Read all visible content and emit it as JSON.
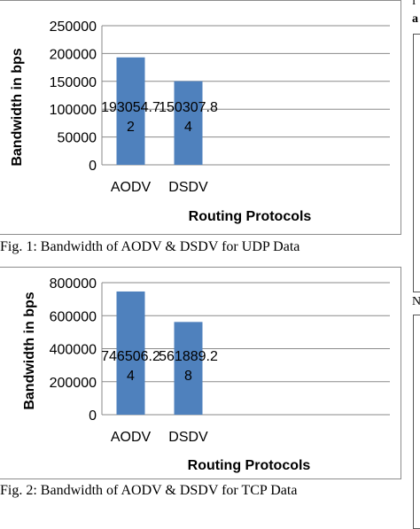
{
  "chart_data": [
    {
      "type": "bar",
      "categories": [
        "AODV",
        "DSDV"
      ],
      "values": [
        193054.72,
        150307.84
      ],
      "data_labels": [
        [
          "193054.7",
          "2"
        ],
        [
          "150307.8",
          "4"
        ]
      ],
      "xlabel": "Routing Protocols",
      "ylabel": "Bandwidth  in bps",
      "ylim": [
        0,
        250000
      ],
      "yticks": [
        0,
        50000,
        100000,
        150000,
        200000,
        250000
      ],
      "ytick_labels": [
        "0",
        "50000",
        "100000",
        "150000",
        "200000",
        "250000"
      ],
      "grid": true,
      "bar_color": "#4f81bd"
    },
    {
      "type": "bar",
      "categories": [
        "AODV",
        "DSDV"
      ],
      "values": [
        746506.24,
        561889.28
      ],
      "data_labels": [
        [
          "746506.2",
          "4"
        ],
        [
          "561889.2",
          "8"
        ]
      ],
      "xlabel": "Routing Protocols",
      "ylabel": "Bandwidth in bps",
      "ylim": [
        0,
        800000
      ],
      "yticks": [
        0,
        200000,
        400000,
        600000,
        800000
      ],
      "ytick_labels": [
        "0",
        "200000",
        "400000",
        "600000",
        "800000"
      ],
      "grid": true,
      "bar_color": "#4f81bd"
    }
  ],
  "captions": [
    "Fig. 1: Bandwidth of AODV & DSDV for UDP Data",
    "Fig. 2: Bandwidth of AODV & DSDV for TCP Data"
  ],
  "edge_fragments": [
    "f",
    "a",
    "N"
  ]
}
